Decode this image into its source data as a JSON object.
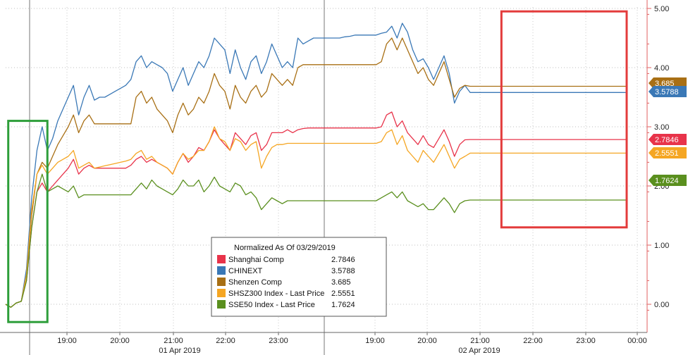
{
  "chart_data": {
    "type": "line",
    "title": "",
    "xlabel": "",
    "ylabel": "",
    "ylim": [
      -0.2,
      5.0
    ],
    "y_ticks": [
      "5.00",
      "4.00",
      "3.00",
      "2.00",
      "1.00",
      "0.00"
    ],
    "y_tick_values": [
      5,
      4,
      3,
      2,
      1,
      0
    ],
    "y_axis_position": "right",
    "grid": true,
    "x_ticks": [
      "19:00",
      "20:00",
      "21:00",
      "22:00",
      "23:00",
      "19:00",
      "20:00",
      "21:00",
      "22:00",
      "23:00",
      "00:00"
    ],
    "date_labels": [
      "01 Apr 2019",
      "02 Apr 2019"
    ],
    "legend": {
      "title": "Normalized As Of 03/29/2019",
      "placement": "bottom-center",
      "entries": [
        {
          "name": "Shanghai Comp",
          "value": "2.7846",
          "color": "#e8334a"
        },
        {
          "name": "CHINEXT",
          "value": "3.5788",
          "color": "#3a78b6"
        },
        {
          "name": "Shenzen Comp",
          "value": "3.685",
          "color": "#a86f14"
        },
        {
          "name": "SHSZ300 Index - Last Price",
          "value": "2.5551",
          "color": "#f5a623"
        },
        {
          "name": "SSE50 Index - Last Price",
          "value": "1.7624",
          "color": "#5a8f1e"
        }
      ]
    },
    "last_value_tags": [
      {
        "text": "3.685",
        "color": "#a86f14",
        "value": 3.685
      },
      {
        "text": "3.5788",
        "color": "#3a78b6",
        "value": 3.5788
      },
      {
        "text": "2.7846",
        "color": "#e8334a",
        "value": 2.7846
      },
      {
        "text": "2.5551",
        "color": "#f5a623",
        "value": 2.5551
      },
      {
        "text": "1.7624",
        "color": "#5a8f1e",
        "value": 1.7624
      }
    ],
    "highlight_boxes": [
      {
        "color": "#2e9e3a",
        "x_range": [
          0.5,
          8
        ],
        "y_range": [
          -0.3,
          3.1
        ]
      },
      {
        "color": "#e33b3b",
        "x_range": [
          95,
          119
        ],
        "y_range": [
          1.3,
          4.95
        ]
      }
    ],
    "x": [
      0,
      1,
      2,
      3,
      4,
      5,
      6,
      7,
      8,
      9,
      10,
      11,
      12,
      13,
      14,
      15,
      16,
      17,
      18,
      19,
      20,
      21,
      22,
      23,
      24,
      25,
      26,
      27,
      28,
      29,
      30,
      31,
      32,
      33,
      34,
      35,
      36,
      37,
      38,
      39,
      40,
      41,
      42,
      43,
      44,
      45,
      46,
      47,
      48,
      49,
      50,
      51,
      52,
      53,
      54,
      55,
      56,
      57,
      58,
      59,
      60,
      61,
      62,
      63,
      64,
      65,
      66,
      67,
      68,
      69,
      70,
      71,
      72,
      73,
      74,
      75,
      76,
      77,
      78,
      79,
      80,
      81,
      82,
      83,
      84,
      85,
      86,
      87,
      88,
      89,
      90,
      91,
      92,
      93,
      94,
      95,
      96,
      97,
      98,
      99,
      100,
      101,
      102,
      103,
      104,
      105,
      106,
      107,
      108,
      109,
      110,
      111,
      112,
      113,
      114,
      115,
      116,
      117,
      118,
      119
    ],
    "series": [
      {
        "name": "CHINEXT",
        "color": "#3a78b6",
        "values": [
          0.0,
          -0.05,
          0.02,
          0.05,
          0.6,
          1.8,
          2.6,
          3.0,
          2.6,
          2.8,
          3.1,
          3.3,
          3.5,
          3.7,
          3.2,
          3.5,
          3.7,
          3.45,
          3.5,
          3.5,
          3.55,
          3.6,
          3.65,
          3.7,
          3.8,
          4.1,
          4.2,
          4.0,
          4.1,
          4.05,
          4.0,
          3.9,
          3.6,
          3.8,
          4.0,
          3.7,
          3.9,
          4.1,
          4.0,
          4.2,
          4.5,
          4.4,
          4.3,
          3.9,
          4.3,
          4.0,
          3.8,
          4.1,
          4.2,
          3.9,
          4.1,
          4.4,
          4.2,
          4.0,
          4.1,
          4.0,
          4.5,
          4.4,
          4.45,
          4.5,
          4.5,
          4.5,
          4.5,
          4.5,
          4.5,
          4.52,
          4.53,
          4.55,
          4.55,
          4.55,
          4.55,
          4.55,
          4.58,
          4.6,
          4.7,
          4.5,
          4.75,
          4.6,
          4.3,
          4.1,
          4.15,
          4.0,
          3.8,
          4.0,
          4.2,
          3.9,
          3.4,
          3.6,
          3.7,
          3.58,
          3.58,
          3.58,
          3.58,
          3.58,
          3.58,
          3.58,
          3.58,
          3.58,
          3.58,
          3.58,
          3.58,
          3.58,
          3.58,
          3.58,
          3.58,
          3.58,
          3.58,
          3.58,
          3.58,
          3.58,
          3.58,
          3.58,
          3.58,
          3.58,
          3.58,
          3.58,
          3.58,
          3.58,
          3.58,
          3.5788
        ]
      },
      {
        "name": "Shenzen Comp",
        "color": "#a86f14",
        "values": [
          0.0,
          -0.05,
          0.02,
          0.05,
          0.5,
          1.5,
          2.2,
          2.4,
          2.3,
          2.5,
          2.7,
          2.85,
          3.0,
          3.2,
          2.9,
          3.1,
          3.2,
          3.05,
          3.05,
          3.05,
          3.05,
          3.05,
          3.05,
          3.05,
          3.05,
          3.5,
          3.6,
          3.4,
          3.5,
          3.3,
          3.2,
          3.1,
          2.9,
          3.2,
          3.4,
          3.2,
          3.3,
          3.5,
          3.4,
          3.6,
          3.9,
          3.7,
          3.6,
          3.3,
          3.7,
          3.5,
          3.4,
          3.6,
          3.7,
          3.5,
          3.6,
          3.9,
          3.8,
          3.7,
          3.8,
          3.7,
          4.0,
          4.05,
          4.05,
          4.05,
          4.05,
          4.05,
          4.05,
          4.05,
          4.05,
          4.05,
          4.05,
          4.05,
          4.05,
          4.05,
          4.05,
          4.05,
          4.1,
          4.4,
          4.5,
          4.3,
          4.5,
          4.3,
          4.1,
          3.9,
          4.0,
          3.8,
          3.7,
          3.9,
          4.1,
          3.8,
          3.5,
          3.65,
          3.7,
          3.685,
          3.685,
          3.685,
          3.685,
          3.685,
          3.685,
          3.685,
          3.685,
          3.685,
          3.685,
          3.685,
          3.685,
          3.685,
          3.685,
          3.685,
          3.685,
          3.685,
          3.685,
          3.685,
          3.685,
          3.685,
          3.685,
          3.685,
          3.685,
          3.685,
          3.685,
          3.685,
          3.685,
          3.685,
          3.685,
          3.685
        ]
      },
      {
        "name": "Shanghai Comp",
        "color": "#e8334a",
        "values": [
          0.0,
          -0.05,
          0.02,
          0.05,
          0.4,
          1.3,
          1.9,
          2.05,
          1.9,
          2.0,
          2.1,
          2.2,
          2.3,
          2.45,
          2.2,
          2.3,
          2.35,
          2.3,
          2.3,
          2.3,
          2.3,
          2.3,
          2.3,
          2.3,
          2.35,
          2.45,
          2.5,
          2.4,
          2.45,
          2.4,
          2.35,
          2.3,
          2.2,
          2.4,
          2.55,
          2.4,
          2.5,
          2.65,
          2.6,
          2.75,
          2.95,
          2.8,
          2.7,
          2.6,
          2.9,
          2.8,
          2.7,
          2.85,
          2.9,
          2.6,
          2.7,
          2.9,
          2.9,
          2.9,
          2.95,
          2.9,
          2.95,
          2.97,
          2.98,
          2.98,
          2.98,
          2.98,
          2.98,
          2.98,
          2.98,
          2.98,
          2.98,
          2.98,
          2.98,
          2.98,
          2.98,
          2.98,
          3.0,
          3.2,
          3.25,
          3.0,
          3.1,
          2.9,
          2.8,
          2.7,
          2.85,
          2.7,
          2.65,
          2.8,
          2.95,
          2.75,
          2.5,
          2.7,
          2.78,
          2.7846,
          2.7846,
          2.7846,
          2.7846,
          2.7846,
          2.7846,
          2.7846,
          2.7846,
          2.7846,
          2.7846,
          2.7846,
          2.7846,
          2.7846,
          2.7846,
          2.7846,
          2.7846,
          2.7846,
          2.7846,
          2.7846,
          2.7846,
          2.7846,
          2.7846,
          2.7846,
          2.7846,
          2.7846,
          2.7846,
          2.7846,
          2.7846,
          2.7846,
          2.7846,
          2.7846
        ]
      },
      {
        "name": "SHSZ300 Index - Last Price",
        "color": "#f5a623",
        "values": [
          0.0,
          -0.05,
          0.02,
          0.05,
          0.5,
          1.6,
          2.2,
          2.35,
          2.2,
          2.3,
          2.4,
          2.45,
          2.5,
          2.6,
          2.3,
          2.35,
          2.4,
          2.3,
          2.32,
          2.34,
          2.36,
          2.38,
          2.4,
          2.42,
          2.45,
          2.55,
          2.6,
          2.45,
          2.5,
          2.4,
          2.35,
          2.3,
          2.2,
          2.4,
          2.55,
          2.45,
          2.5,
          2.6,
          2.6,
          2.75,
          3.0,
          2.8,
          2.75,
          2.6,
          2.8,
          2.75,
          2.6,
          2.7,
          2.75,
          2.3,
          2.5,
          2.65,
          2.7,
          2.7,
          2.72,
          2.72,
          2.72,
          2.72,
          2.72,
          2.72,
          2.72,
          2.72,
          2.72,
          2.72,
          2.72,
          2.72,
          2.72,
          2.72,
          2.72,
          2.72,
          2.72,
          2.72,
          2.75,
          2.9,
          2.95,
          2.7,
          2.85,
          2.6,
          2.5,
          2.4,
          2.6,
          2.5,
          2.4,
          2.55,
          2.7,
          2.5,
          2.3,
          2.45,
          2.5,
          2.5551,
          2.5551,
          2.5551,
          2.5551,
          2.5551,
          2.5551,
          2.5551,
          2.5551,
          2.5551,
          2.5551,
          2.5551,
          2.5551,
          2.5551,
          2.5551,
          2.5551,
          2.5551,
          2.5551,
          2.5551,
          2.5551,
          2.5551,
          2.5551,
          2.5551,
          2.5551,
          2.5551,
          2.5551,
          2.5551,
          2.5551,
          2.5551,
          2.5551,
          2.5551,
          2.5551
        ]
      },
      {
        "name": "SSE50 Index - Last Price",
        "color": "#5a8f1e",
        "values": [
          0.0,
          -0.05,
          0.02,
          0.05,
          0.4,
          1.3,
          1.9,
          2.2,
          1.9,
          1.95,
          2.0,
          1.95,
          1.9,
          2.0,
          1.8,
          1.85,
          1.85,
          1.85,
          1.85,
          1.85,
          1.85,
          1.85,
          1.85,
          1.85,
          1.85,
          1.95,
          2.05,
          1.95,
          2.1,
          2.0,
          1.95,
          1.9,
          1.85,
          1.95,
          2.1,
          2.0,
          2.0,
          2.1,
          1.9,
          2.0,
          2.15,
          2.0,
          1.95,
          1.9,
          2.05,
          2.0,
          1.85,
          1.9,
          1.8,
          1.6,
          1.7,
          1.8,
          1.75,
          1.7,
          1.75,
          1.75,
          1.75,
          1.75,
          1.75,
          1.75,
          1.75,
          1.75,
          1.75,
          1.75,
          1.75,
          1.75,
          1.75,
          1.75,
          1.75,
          1.75,
          1.75,
          1.75,
          1.8,
          1.85,
          1.9,
          1.8,
          1.9,
          1.75,
          1.7,
          1.65,
          1.7,
          1.6,
          1.6,
          1.7,
          1.8,
          1.7,
          1.55,
          1.7,
          1.75,
          1.7624,
          1.7624,
          1.7624,
          1.7624,
          1.7624,
          1.7624,
          1.7624,
          1.7624,
          1.7624,
          1.7624,
          1.7624,
          1.7624,
          1.7624,
          1.7624,
          1.7624,
          1.7624,
          1.7624,
          1.7624,
          1.7624,
          1.7624,
          1.7624,
          1.7624,
          1.7624,
          1.7624,
          1.7624,
          1.7624,
          1.7624,
          1.7624,
          1.7624,
          1.7624,
          1.7624
        ]
      }
    ]
  }
}
